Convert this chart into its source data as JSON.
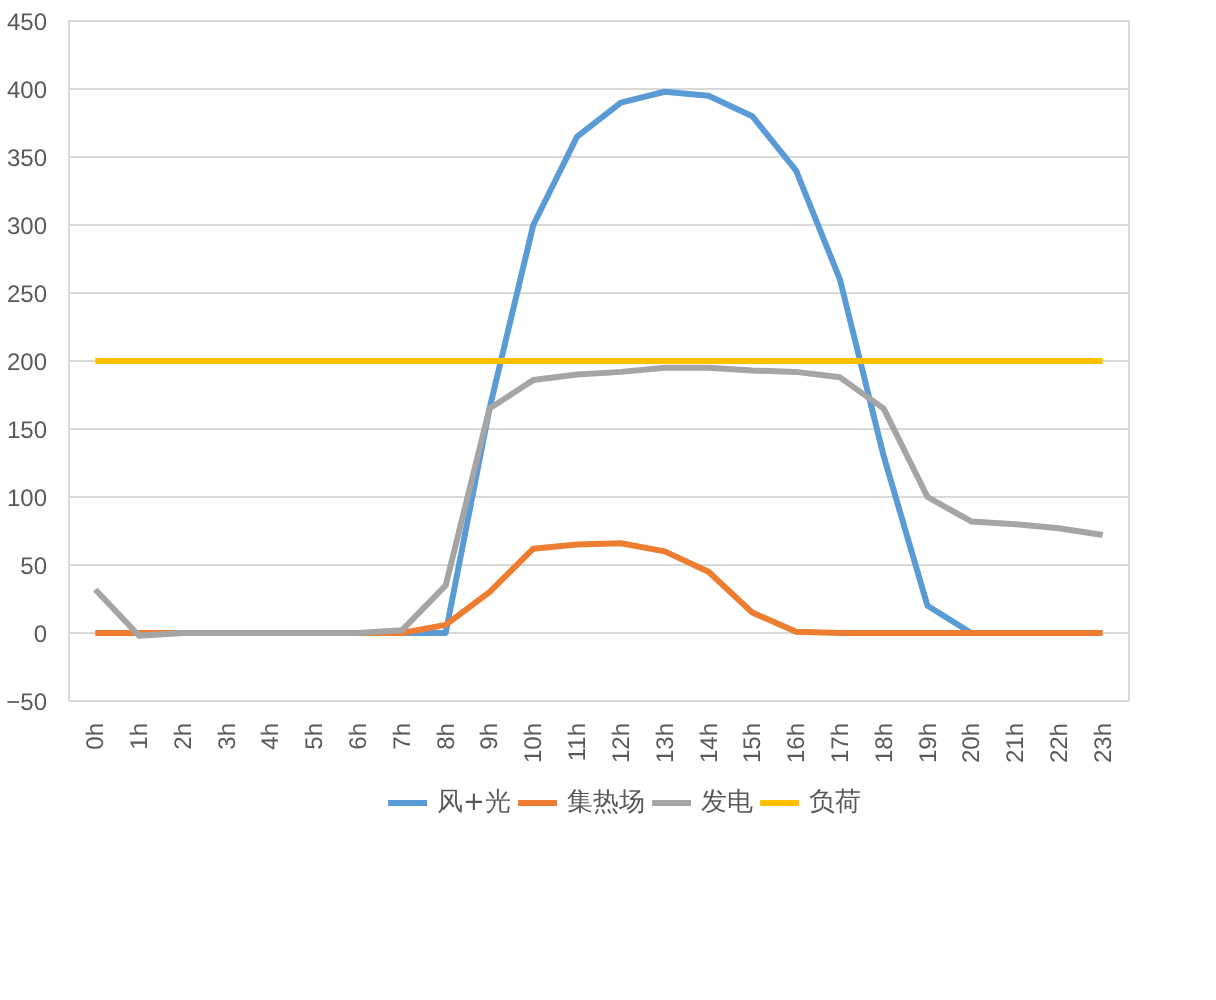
{
  "chart_data": {
    "type": "line",
    "categories": [
      "0h",
      "1h",
      "2h",
      "3h",
      "4h",
      "5h",
      "6h",
      "7h",
      "8h",
      "9h",
      "10h",
      "11h",
      "12h",
      "13h",
      "14h",
      "15h",
      "16h",
      "17h",
      "18h",
      "19h",
      "20h",
      "21h",
      "22h",
      "23h"
    ],
    "series": [
      {
        "name": "风+光",
        "color": "#5b9bd5",
        "values": [
          null,
          null,
          null,
          null,
          null,
          null,
          0,
          0,
          0,
          165,
          300,
          365,
          390,
          398,
          395,
          380,
          340,
          260,
          130,
          20,
          0,
          0,
          null,
          null
        ]
      },
      {
        "name": "集热场",
        "color": "#ed7d31",
        "values": [
          0,
          0,
          0,
          0,
          0,
          0,
          0,
          0,
          6,
          30,
          62,
          65,
          66,
          60,
          45,
          15,
          1,
          0,
          0,
          0,
          0,
          0,
          0,
          0
        ]
      },
      {
        "name": "发电",
        "color": "#a5a5a5",
        "values": [
          32,
          -2,
          0,
          0,
          0,
          0,
          0,
          2,
          35,
          165,
          186,
          190,
          192,
          195,
          195,
          193,
          192,
          188,
          165,
          100,
          82,
          80,
          77,
          72
        ]
      },
      {
        "name": "负荷",
        "color": "#ffc000",
        "values": [
          200,
          200,
          200,
          200,
          200,
          200,
          200,
          200,
          200,
          200,
          200,
          200,
          200,
          200,
          200,
          200,
          200,
          200,
          200,
          200,
          200,
          200,
          200,
          200
        ]
      }
    ],
    "ylim": [
      -50,
      450
    ],
    "yticks": [
      -50,
      0,
      50,
      100,
      150,
      200,
      250,
      300,
      350,
      400,
      450
    ],
    "grid": "y",
    "legend": "bottom",
    "marker": "none",
    "line_style": "solid"
  }
}
